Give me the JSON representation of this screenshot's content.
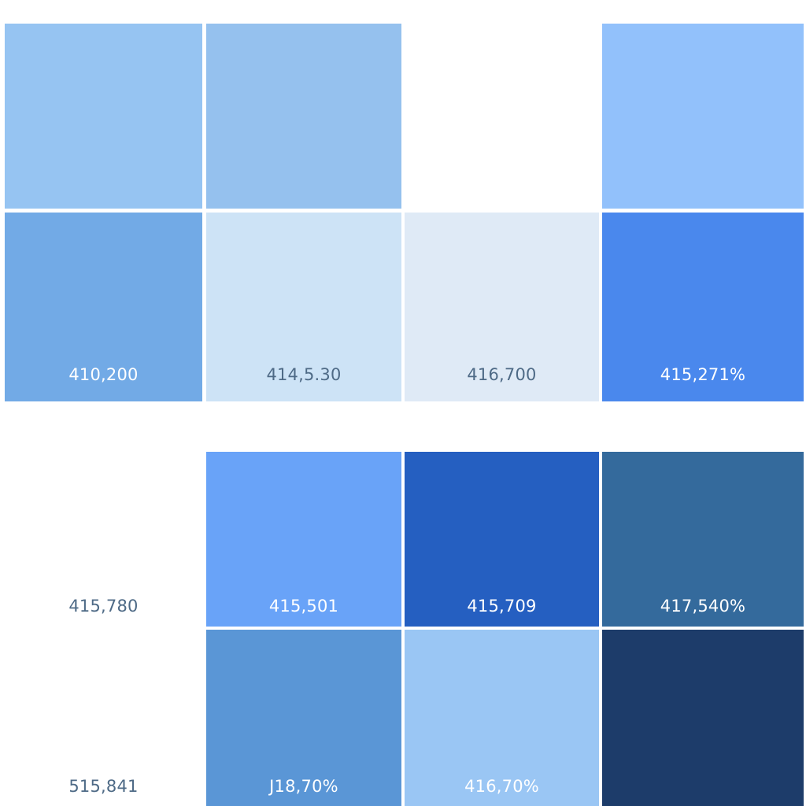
{
  "tiles": {
    "r1": [
      {
        "color": "#96c4f2"
      },
      {
        "color": "#95c1ee"
      },
      {
        "color": "#ffffff"
      },
      {
        "color": "#92c1fb"
      }
    ],
    "r2": [
      {
        "label": "410,200",
        "color": "#72aae6"
      },
      {
        "label": "414,5.30",
        "color": "#cde3f6"
      },
      {
        "label": "416,700",
        "color": "#dfeaf6"
      },
      {
        "label": "415,271%",
        "color": "#4a88ed"
      }
    ],
    "r3": [
      {
        "label": "415,780",
        "color": "#ffffff"
      },
      {
        "label": "415,501",
        "color": "#69a3f8"
      },
      {
        "label": "415,709",
        "color": "#255fc1"
      },
      {
        "label": "417,540%",
        "color": "#346a9c"
      }
    ],
    "r4": [
      {
        "label": "515,841",
        "color": "#ffffff"
      },
      {
        "label": "J18,70%",
        "color": "#5a96d6"
      },
      {
        "label": "416,70%",
        "color": "#9ac6f4"
      },
      {
        "color": "#1d3c6a"
      }
    ]
  }
}
